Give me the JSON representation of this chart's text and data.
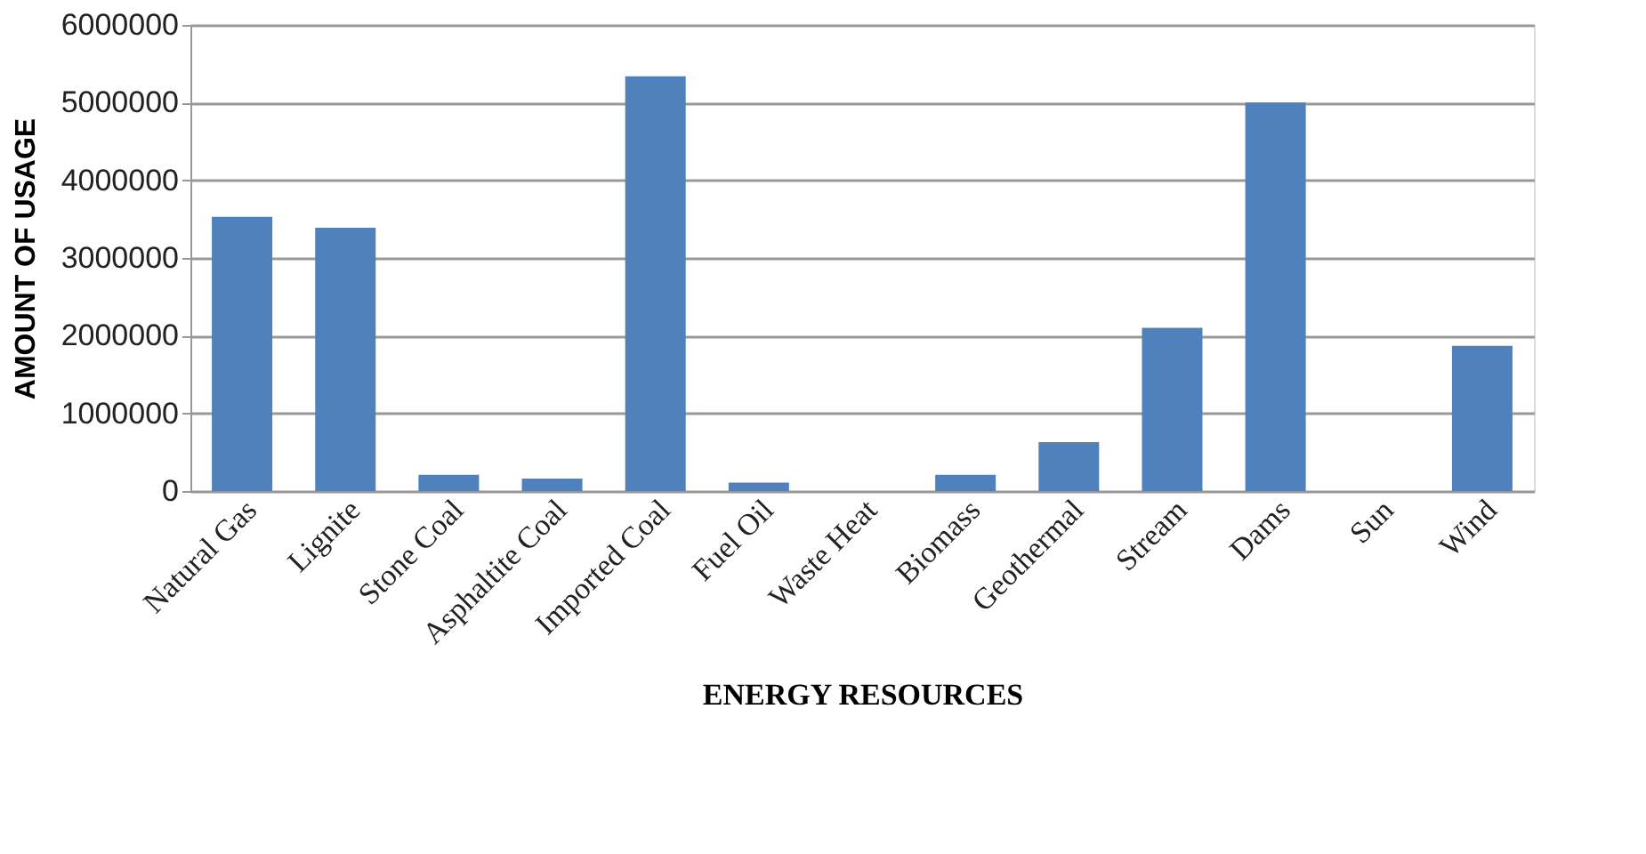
{
  "chart_data": {
    "type": "bar",
    "xlabel": "ENERGY   RESOURCES",
    "ylabel": "AMOUNT OF USAGE",
    "categories": [
      "Natural Gas",
      "Lignite",
      "Stone Coal",
      "Asphaltite Coal",
      "Imported Coal",
      "Fuel Oil",
      "Waste Heat",
      "Biomass",
      "Geothermal",
      "Stream",
      "Dams",
      "Sun",
      "Wind"
    ],
    "values": [
      3530000,
      3390000,
      210000,
      160000,
      5340000,
      110000,
      0,
      210000,
      630000,
      2100000,
      5000000,
      0,
      1870000
    ],
    "color": "#4f81bd",
    "ylim": [
      0,
      6000000
    ],
    "yticks": [
      0,
      1000000,
      2000000,
      3000000,
      4000000,
      5000000,
      6000000
    ],
    "grid": "y"
  }
}
